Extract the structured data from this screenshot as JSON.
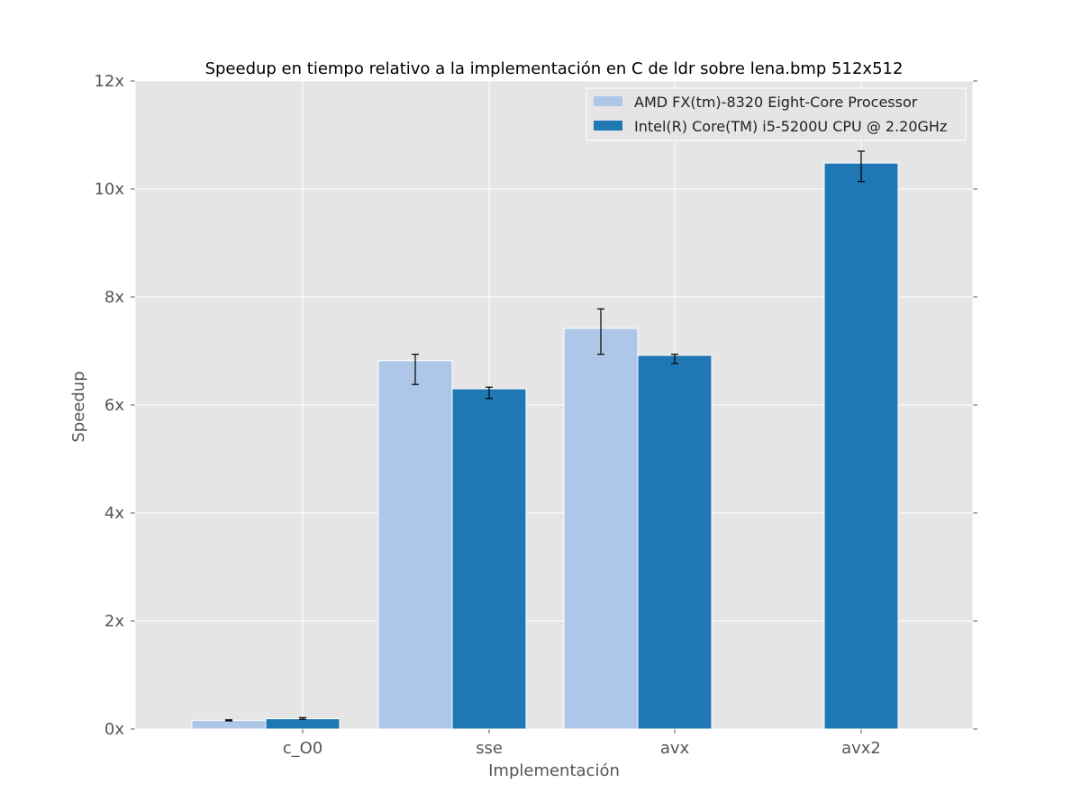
{
  "chart_data": {
    "type": "bar",
    "title": "Speedup en tiempo relativo a la implementación en C de ldr sobre lena.bmp 512x512",
    "xlabel": "Implementación",
    "ylabel": "Speedup",
    "categories": [
      "c_O0",
      "sse",
      "avx",
      "avx2"
    ],
    "ylim": [
      0,
      12
    ],
    "yticks": [
      0,
      2,
      4,
      6,
      8,
      10,
      12
    ],
    "ytick_labels": [
      "0x",
      "2x",
      "4x",
      "6x",
      "8x",
      "10x",
      "12x"
    ],
    "grid": true,
    "legend_position": "top-right",
    "series": [
      {
        "name": "AMD FX(tm)-8320 Eight-Core Processor",
        "color": "#aec7e8",
        "values": [
          0.16,
          6.82,
          7.42,
          null
        ],
        "err_low": [
          0.15,
          6.38,
          6.94,
          null
        ],
        "err_high": [
          0.17,
          6.94,
          7.78,
          null
        ]
      },
      {
        "name": "Intel(R) Core(TM) i5-5200U CPU @ 2.20GHz",
        "color": "#1f77b4",
        "values": [
          0.19,
          6.3,
          6.92,
          10.48
        ],
        "err_low": [
          0.18,
          6.12,
          6.77,
          10.14
        ],
        "err_high": [
          0.21,
          6.33,
          6.94,
          10.7
        ]
      }
    ],
    "style": {
      "plot_background": "#e5e5e5",
      "grid_color": "#ffffff",
      "error_bar_color": "#000000"
    }
  }
}
